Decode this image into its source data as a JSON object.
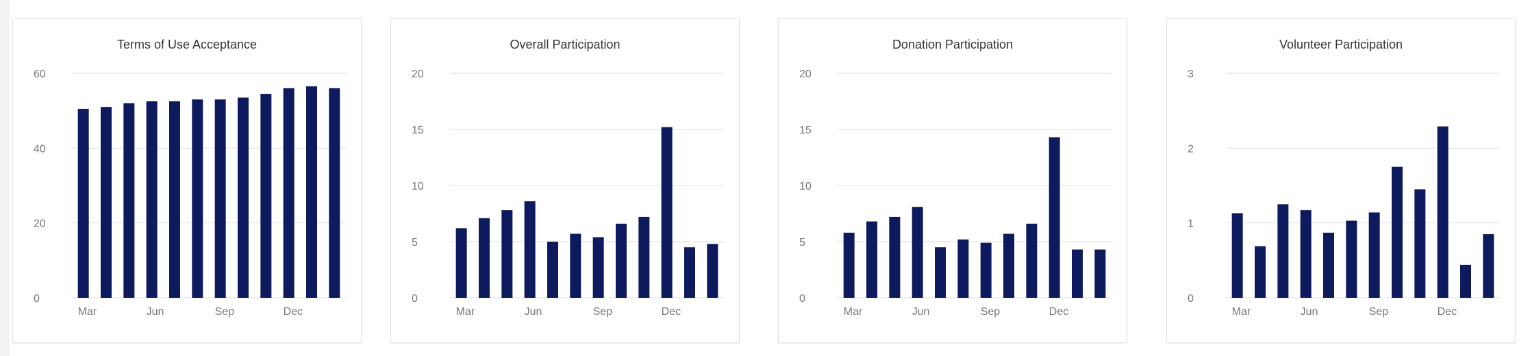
{
  "colors": {
    "bar": "#0d1b5e",
    "grid": "#dddddd",
    "tick_text": "#777777",
    "title_text": "#333333"
  },
  "chart_data": [
    {
      "type": "bar",
      "title": "Terms of Use Acceptance",
      "xlabel": "",
      "ylabel": "",
      "ylim": [
        0,
        60
      ],
      "yticks": [
        "0",
        "20",
        "40",
        "60"
      ],
      "xtick_labels": [
        {
          "index": 0,
          "label": "Mar"
        },
        {
          "index": 3,
          "label": "Jun"
        },
        {
          "index": 6,
          "label": "Sep"
        },
        {
          "index": 9,
          "label": "Dec"
        }
      ],
      "values": [
        50.5,
        51,
        52,
        52.5,
        52.5,
        53,
        53,
        53.5,
        54.5,
        56,
        56.5,
        56
      ],
      "grid": true
    },
    {
      "type": "bar",
      "title": "Overall Participation",
      "xlabel": "",
      "ylabel": "",
      "ylim": [
        0,
        20
      ],
      "yticks": [
        "0",
        "5",
        "10",
        "15",
        "20"
      ],
      "xtick_labels": [
        {
          "index": 0,
          "label": "Mar"
        },
        {
          "index": 3,
          "label": "Jun"
        },
        {
          "index": 6,
          "label": "Sep"
        },
        {
          "index": 9,
          "label": "Dec"
        }
      ],
      "values": [
        6.2,
        7.1,
        7.8,
        8.6,
        5.0,
        5.7,
        5.4,
        6.6,
        7.2,
        15.2,
        4.5,
        4.8
      ],
      "grid": true
    },
    {
      "type": "bar",
      "title": "Donation Participation",
      "xlabel": "",
      "ylabel": "",
      "ylim": [
        0,
        20
      ],
      "yticks": [
        "0",
        "5",
        "10",
        "15",
        "20"
      ],
      "xtick_labels": [
        {
          "index": 0,
          "label": "Mar"
        },
        {
          "index": 3,
          "label": "Jun"
        },
        {
          "index": 6,
          "label": "Sep"
        },
        {
          "index": 9,
          "label": "Dec"
        }
      ],
      "values": [
        5.8,
        6.8,
        7.2,
        8.1,
        4.5,
        5.2,
        4.9,
        5.7,
        6.6,
        14.3,
        4.3,
        4.3
      ],
      "grid": true
    },
    {
      "type": "bar",
      "title": "Volunteer Participation",
      "xlabel": "",
      "ylabel": "",
      "ylim": [
        0,
        3
      ],
      "yticks": [
        "0",
        "1",
        "2",
        "3"
      ],
      "xtick_labels": [
        {
          "index": 0,
          "label": "Mar"
        },
        {
          "index": 3,
          "label": "Jun"
        },
        {
          "index": 6,
          "label": "Sep"
        },
        {
          "index": 9,
          "label": "Dec"
        }
      ],
      "values": [
        1.13,
        0.69,
        1.25,
        1.17,
        0.87,
        1.03,
        1.14,
        1.75,
        1.45,
        2.29,
        0.44,
        0.85
      ],
      "grid": true
    }
  ]
}
